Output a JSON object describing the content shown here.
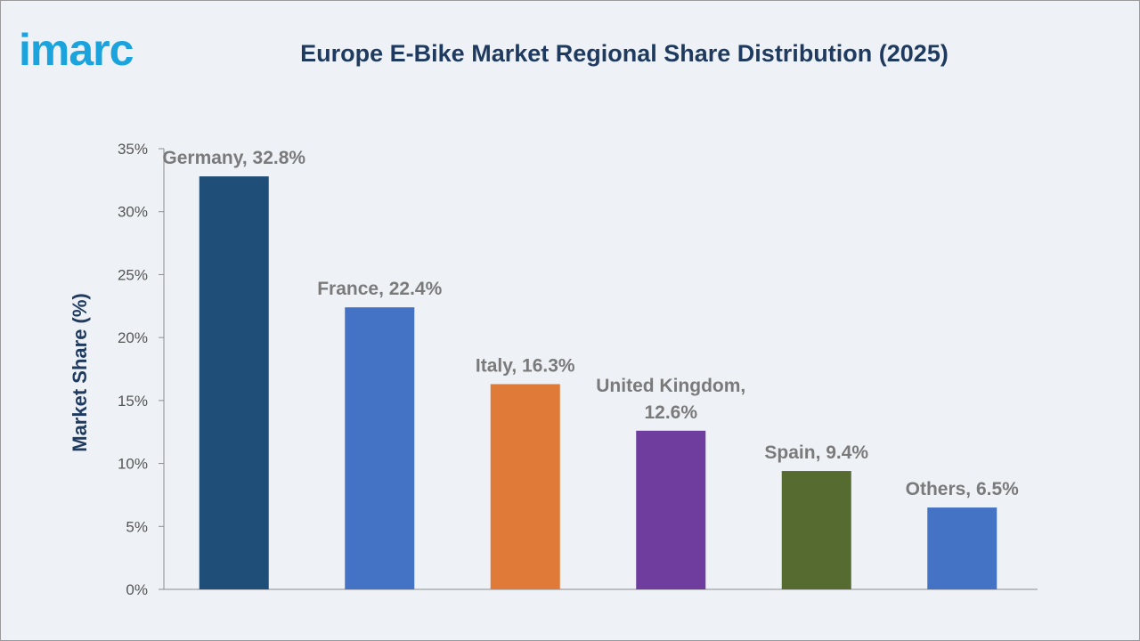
{
  "brand": {
    "logo_text": "imarc",
    "logo_color": "#1aa3dd"
  },
  "chart_data": {
    "type": "bar",
    "title": "Europe E-Bike Market Regional Share Distribution (2025)",
    "xlabel": "",
    "ylabel": "Market Share (%)",
    "ylim": [
      0,
      35
    ],
    "yticks": [
      "0%",
      "5%",
      "10%",
      "15%",
      "20%",
      "25%",
      "30%",
      "35%"
    ],
    "categories": [
      "Germany",
      "France",
      "Italy",
      "United Kingdom",
      "Spain",
      "Others"
    ],
    "values": [
      32.8,
      22.4,
      16.3,
      12.6,
      9.4,
      6.5
    ],
    "data_labels": [
      [
        "Germany, 32.8%"
      ],
      [
        "France, 22.4%"
      ],
      [
        "Italy, 16.3%"
      ],
      [
        "United Kingdom,",
        "12.6%"
      ],
      [
        "Spain, 9.4%"
      ],
      [
        "Others, 6.5%"
      ]
    ],
    "colors": [
      "#1f4e79",
      "#4472c4",
      "#e07a38",
      "#6f3d9e",
      "#556b2f",
      "#4472c4"
    ],
    "grid": false,
    "legend": "none"
  }
}
